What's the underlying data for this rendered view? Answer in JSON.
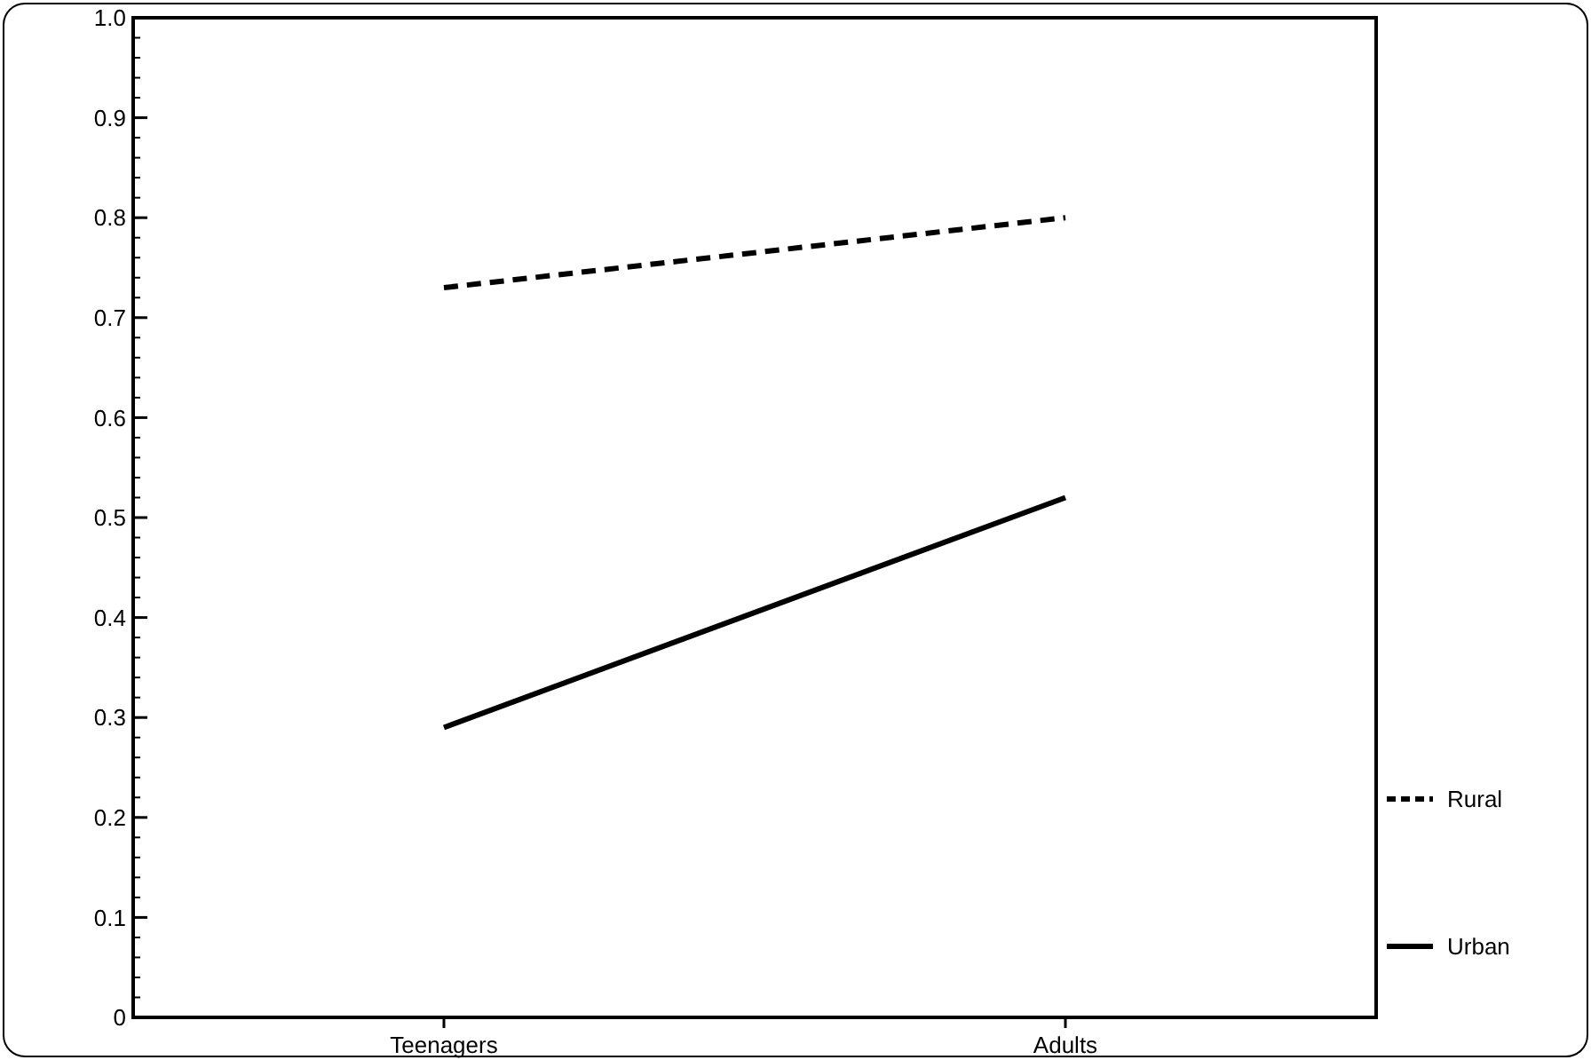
{
  "chart_data": {
    "type": "line",
    "categories": [
      "Teenagers",
      "Adults"
    ],
    "series": [
      {
        "name": "Rural",
        "color": "#000000",
        "values": [
          0.73,
          0.8
        ],
        "line_style": "dashed"
      },
      {
        "name": "Urban",
        "color": "#000000",
        "values": [
          0.29,
          0.52
        ],
        "line_style": "solid"
      }
    ],
    "ylim": [
      0,
      1
    ],
    "yticks": [
      0,
      0.1,
      0.2,
      0.3,
      0.4,
      0.5,
      0.6,
      0.7,
      0.8,
      0.9,
      {
        "value": 1,
        "label": "1.0"
      }
    ],
    "legend": "bottom right",
    "grid": false,
    "marker": "none"
  }
}
